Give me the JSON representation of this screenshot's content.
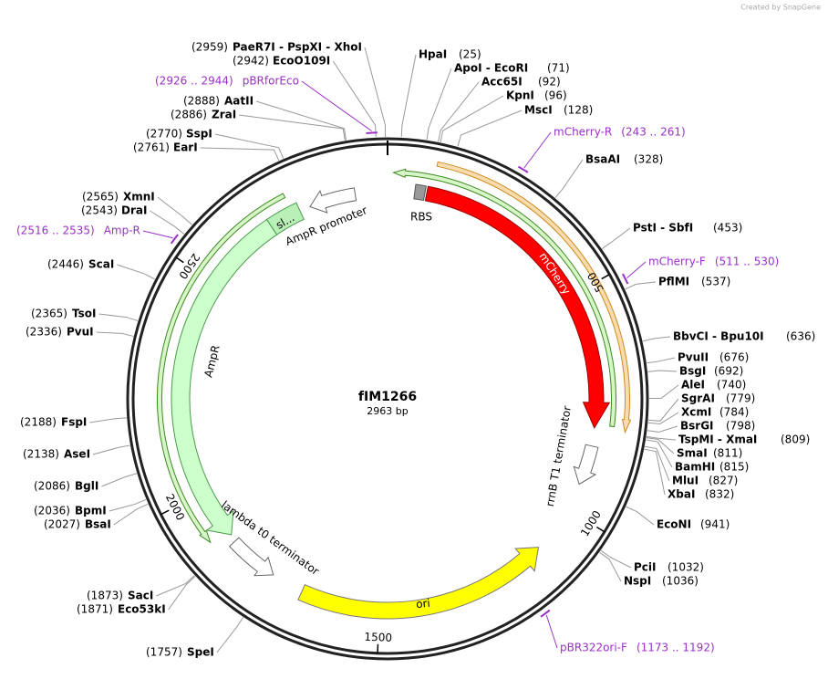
{
  "created_by": "Created by SnapGene",
  "map": {
    "name": "fIM1266",
    "length": "2963 bp",
    "ticks": [
      500,
      1000,
      1500,
      2000,
      2500
    ],
    "features": [
      {
        "label": "mCherry"
      },
      {
        "label": "RBS"
      },
      {
        "label": "rrnB T1 terminator"
      },
      {
        "label": "ori"
      },
      {
        "label": "lambda t0 terminator"
      },
      {
        "label": "AmpR"
      },
      {
        "label": "AmpR promoter"
      },
      {
        "label": "sl..."
      }
    ],
    "sites": [
      {
        "name": "HpaI",
        "position": "(25)"
      },
      {
        "name": "ApoI - EcoRI",
        "position": "(71)"
      },
      {
        "name": "Acc65I",
        "position": "(92)"
      },
      {
        "name": "KpnI",
        "position": "(96)"
      },
      {
        "name": "MscI",
        "position": "(128)"
      },
      {
        "name": "BsaAI",
        "position": "(328)"
      },
      {
        "name": "PstI - SbfI",
        "position": "(453)"
      },
      {
        "name": "PflMI",
        "position": "(537)"
      },
      {
        "name": "BbvCI - Bpu10I",
        "position": "(636)"
      },
      {
        "name": "PvuII",
        "position": "(676)"
      },
      {
        "name": "BsgI",
        "position": "(692)"
      },
      {
        "name": "AleI",
        "position": "(740)"
      },
      {
        "name": "SgrAI",
        "position": "(779)"
      },
      {
        "name": "XcmI",
        "position": "(784)"
      },
      {
        "name": "BsrGI",
        "position": "(798)"
      },
      {
        "name": "TspMI - XmaI",
        "position": "(809)"
      },
      {
        "name": "SmaI",
        "position": "(811)"
      },
      {
        "name": "BamHI",
        "position": "(815)"
      },
      {
        "name": "MluI",
        "position": "(827)"
      },
      {
        "name": "XbaI",
        "position": "(832)"
      },
      {
        "name": "EcoNI",
        "position": "(941)"
      },
      {
        "name": "PciI",
        "position": "(1032)"
      },
      {
        "name": "NspI",
        "position": "(1036)"
      },
      {
        "name": "SpeI",
        "position": "(1757)"
      },
      {
        "name": "Eco53kI",
        "position": "(1871)"
      },
      {
        "name": "SacI",
        "position": "(1873)"
      },
      {
        "name": "BsaI",
        "position": "(2027)"
      },
      {
        "name": "BpmI",
        "position": "(2036)"
      },
      {
        "name": "BglI",
        "position": "(2086)"
      },
      {
        "name": "AseI",
        "position": "(2138)"
      },
      {
        "name": "FspI",
        "position": "(2188)"
      },
      {
        "name": "PvuI",
        "position": "(2336)"
      },
      {
        "name": "TsoI",
        "position": "(2365)"
      },
      {
        "name": "ScaI",
        "position": "(2446)"
      },
      {
        "name": "DraI",
        "position": "(2543)"
      },
      {
        "name": "XmnI",
        "position": "(2565)"
      },
      {
        "name": "EarI",
        "position": "(2761)"
      },
      {
        "name": "SspI",
        "position": "(2770)"
      },
      {
        "name": "ZraI",
        "position": "(2886)"
      },
      {
        "name": "AatII",
        "position": "(2888)"
      },
      {
        "name": "EcoO109I",
        "position": "(2942)"
      },
      {
        "name": "PaeR7I - PspXI - XhoI",
        "position": "(2959)"
      }
    ],
    "primers": [
      {
        "name": "mCherry-R",
        "range": "(243 .. 261)"
      },
      {
        "name": "mCherry-F",
        "range": "(511 .. 530)"
      },
      {
        "name": "pBR322ori-F",
        "range": "(1173 .. 1192)"
      },
      {
        "name": "Amp-R",
        "range": "(2516 .. 2535)"
      },
      {
        "name": "pBRforEco",
        "range": "(2926 .. 2944)"
      }
    ]
  }
}
